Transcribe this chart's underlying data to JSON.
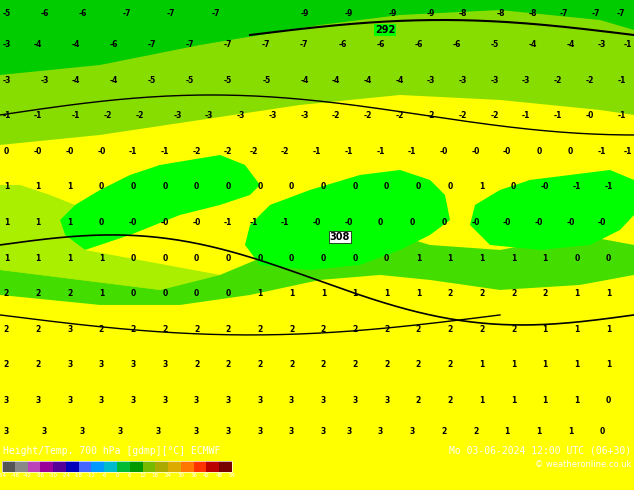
{
  "title_left": "Height/Temp. 700 hPa [gdmp][°C] ECMWF",
  "title_right": "Mo 03-06-2024 12:00 UTC (06+30)",
  "copyright": "© weatheronline.co.uk",
  "colorbar_values": [
    -54,
    -48,
    -42,
    -36,
    -30,
    -24,
    -18,
    -12,
    -6,
    0,
    6,
    12,
    18,
    24,
    30,
    36,
    42,
    48,
    54
  ],
  "color_green_bright": "#00ff00",
  "color_green_mid": "#44dd00",
  "color_yellow": "#ffff00",
  "color_yellow_green": "#aaee00",
  "fig_bg": "#ffff00",
  "fig_width": 6.34,
  "fig_height": 4.9,
  "dpi": 100,
  "colorbar_colors": [
    "#666666",
    "#999999",
    "#cc44cc",
    "#aa00aa",
    "#6600aa",
    "#0000cc",
    "#4477ff",
    "#00aaff",
    "#00cccc",
    "#00cc44",
    "#00aa00",
    "#88cc00",
    "#cccc00",
    "#ffcc00",
    "#ff8800",
    "#ff4400",
    "#cc0000",
    "#880000"
  ]
}
